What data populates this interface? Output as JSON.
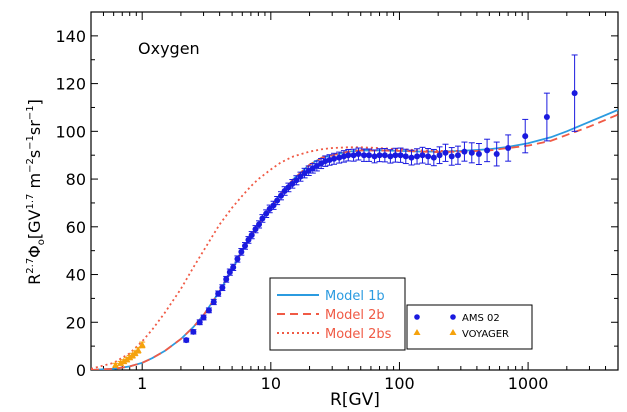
{
  "chart_data": {
    "type": "scatter",
    "title": "",
    "panel_label": "Oxygen",
    "xlabel": "R[GV]",
    "ylabel_parts": {
      "main": "R",
      "exp": "2.7",
      "phi": "Φ",
      "sub": "o",
      "open": "[GV",
      "unit_exp": "1.7",
      "m": " m",
      "m_exp": "−2",
      "s": "s",
      "s_exp": "−1",
      "sr": "sr",
      "sr_exp": "−1",
      "close": "]"
    },
    "x_scale": "log",
    "xlim": [
      0.4,
      5000
    ],
    "ylim": [
      0,
      150
    ],
    "x_ticks": [
      1,
      10,
      100,
      1000
    ],
    "x_tick_labels": [
      "1",
      "10",
      "100",
      "1000"
    ],
    "y_ticks": [
      0,
      20,
      40,
      60,
      80,
      100,
      120,
      140
    ],
    "y_tick_labels": [
      "0",
      "20",
      "40",
      "60",
      "80",
      "100",
      "120",
      "140"
    ],
    "grid": false,
    "legend": {
      "models": [
        {
          "label": "Model 1b",
          "color": "#2b9be0",
          "style": "solid"
        },
        {
          "label": "Model 2b",
          "color": "#f05a45",
          "style": "dashed"
        },
        {
          "label": "Model 2bs",
          "color": "#f05a45",
          "style": "dotted"
        }
      ],
      "data": [
        {
          "label": "AMS 02",
          "color": "#1a1adf",
          "marker": "circle"
        },
        {
          "label": "VOYAGER",
          "color": "#f5a20c",
          "marker": "triangle"
        }
      ]
    },
    "series": [
      {
        "name": "Model 1b",
        "color": "#2b9be0",
        "style": "solid",
        "x": [
          0.4,
          0.6,
          0.8,
          1.0,
          1.2,
          1.5,
          2.0,
          2.5,
          3.0,
          4.0,
          5.0,
          6.0,
          7.0,
          8.0,
          10,
          12,
          15,
          20,
          25,
          30,
          40,
          50,
          70,
          100,
          150,
          200,
          300,
          500,
          700,
          1000,
          1500,
          2000,
          3000,
          5000
        ],
        "y": [
          0,
          0.5,
          1.5,
          3,
          5,
          8,
          13,
          18,
          23,
          33,
          42,
          50,
          56,
          61,
          68,
          74,
          80,
          86,
          89,
          90,
          91.5,
          92,
          92,
          91.8,
          91.5,
          91.5,
          91.8,
          92.5,
          93.5,
          95,
          97.5,
          100,
          104,
          109
        ]
      },
      {
        "name": "Model 2b",
        "color": "#f05a45",
        "style": "dashed",
        "x": [
          0.4,
          0.6,
          0.8,
          1.0,
          1.2,
          1.5,
          2.0,
          2.5,
          3.0,
          4.0,
          5.0,
          6.0,
          7.0,
          8.0,
          10,
          12,
          15,
          20,
          25,
          30,
          40,
          50,
          70,
          100,
          150,
          200,
          300,
          500,
          700,
          1000,
          1500,
          2000,
          3000,
          5000
        ],
        "y": [
          0,
          0.5,
          1.5,
          3,
          5,
          8,
          13,
          18,
          23,
          33,
          42,
          50,
          56,
          61,
          68,
          74,
          80,
          86,
          89,
          90,
          91.5,
          92,
          92,
          91.8,
          91.5,
          91.3,
          91.5,
          92,
          93,
          94,
          96,
          98.5,
          102,
          107
        ]
      },
      {
        "name": "Model 2bs",
        "color": "#f05a45",
        "style": "dotted",
        "x": [
          0.4,
          0.6,
          0.8,
          1.0,
          1.2,
          1.5,
          2.0,
          2.5,
          3.0,
          4.0,
          5.0,
          6.0,
          7.0,
          8.0,
          10,
          12,
          15,
          20,
          25,
          30,
          40,
          50,
          70,
          100,
          150,
          200,
          300
        ],
        "y": [
          0.5,
          3,
          7,
          12,
          17,
          24,
          34,
          43,
          50,
          61,
          68,
          73,
          77,
          80,
          84,
          87,
          89.5,
          91.5,
          92.5,
          93,
          93.3,
          93.3,
          93,
          92.5,
          92,
          91.8,
          91.8
        ]
      }
    ],
    "points": [
      {
        "name": "AMS 02",
        "color": "#1a1adf",
        "x": [
          2.2,
          2.5,
          2.8,
          3.0,
          3.3,
          3.6,
          3.9,
          4.2,
          4.5,
          4.8,
          5.1,
          5.5,
          5.9,
          6.3,
          6.7,
          7.1,
          7.6,
          8.1,
          8.6,
          9.2,
          9.8,
          10.5,
          11.2,
          12.0,
          12.8,
          13.7,
          14.7,
          15.8,
          17.0,
          18.3,
          19.7,
          21.2,
          22.8,
          24.6,
          26.5,
          28.6,
          31,
          34,
          37,
          40,
          44,
          48,
          53,
          58,
          64,
          70,
          77,
          85,
          93,
          102,
          112,
          124,
          137,
          151,
          167,
          185,
          205,
          228,
          255,
          285,
          320,
          365,
          415,
          480,
          570,
          700,
          950,
          1400,
          2300
        ],
        "y": [
          12.5,
          16,
          20,
          22,
          25,
          28.5,
          32,
          34.5,
          38,
          41,
          43,
          46.5,
          49.5,
          52,
          54.5,
          56.5,
          59,
          61,
          63.5,
          65.5,
          67.5,
          69,
          71,
          73,
          75,
          76.5,
          78,
          79.5,
          81,
          82.5,
          83.5,
          84.5,
          85.5,
          86.5,
          87.5,
          88,
          88.5,
          89,
          89.5,
          90,
          90,
          90.5,
          90,
          90,
          89.5,
          90,
          90,
          89.5,
          90,
          90,
          89.5,
          89,
          89.5,
          90,
          89.5,
          89,
          90,
          91,
          89.5,
          90,
          91.5,
          91,
          90.5,
          92,
          90.5,
          93,
          98,
          106,
          116
        ],
        "err": [
          0.8,
          0.9,
          1,
          1,
          1,
          1.1,
          1.1,
          1.2,
          1.2,
          1.3,
          1.3,
          1.3,
          1.4,
          1.4,
          1.4,
          1.5,
          1.5,
          1.5,
          1.6,
          1.6,
          1.6,
          1.7,
          1.7,
          1.7,
          1.8,
          1.8,
          1.8,
          1.9,
          1.9,
          2,
          2,
          2,
          2.1,
          2.1,
          2.2,
          2.2,
          2.3,
          2.3,
          2.4,
          2.4,
          2.5,
          2.5,
          2.6,
          2.6,
          2.7,
          2.7,
          2.8,
          2.8,
          2.9,
          3,
          3,
          3.1,
          3.2,
          3.3,
          3.3,
          3.4,
          3.5,
          3.6,
          3.7,
          3.8,
          4,
          4.2,
          4.4,
          4.7,
          5,
          5.5,
          7,
          10,
          16
        ]
      },
      {
        "name": "VOYAGER",
        "color": "#f5a20c",
        "marker": "triangle",
        "x": [
          0.62,
          0.68,
          0.72,
          0.76,
          0.8,
          0.84,
          0.88,
          0.93,
          1.0
        ],
        "y": [
          2.0,
          2.8,
          3.5,
          4.3,
          5.2,
          6.0,
          7.0,
          8.2,
          10.5
        ],
        "err": [
          0.8,
          0.8,
          0.8,
          0.9,
          0.9,
          1.0,
          1.0,
          1.1,
          1.2
        ]
      }
    ]
  }
}
